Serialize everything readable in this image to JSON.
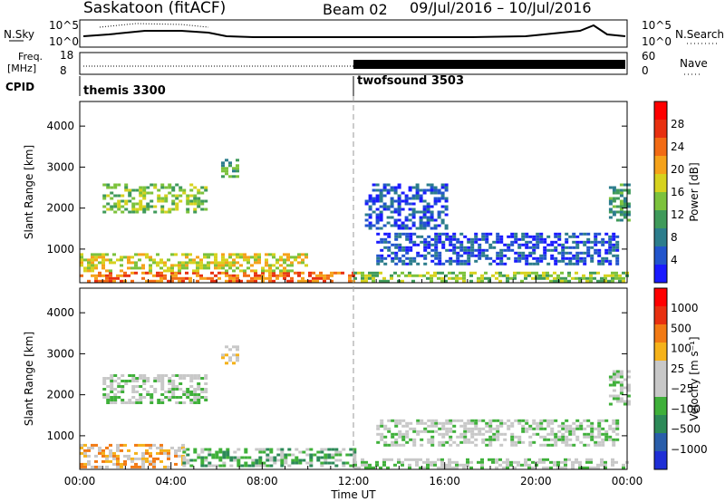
{
  "header": {
    "station": "Saskatoon (fitACF)",
    "beam": "Beam 02",
    "date_range": "09/Jul/2016 – 10/Jul/2016"
  },
  "status_panels": {
    "nsky": {
      "label": "N.Sky",
      "left_ticks": [
        "10^5",
        "10^0"
      ],
      "right_label": "N.Search",
      "right_ticks": [
        "10^5",
        "10^0"
      ]
    },
    "freq": {
      "label_line1": "Freq.",
      "label_line2": "[MHz]",
      "left_ticks": [
        "18",
        "8"
      ],
      "right_label": "Nave",
      "right_ticks": [
        "60",
        "0"
      ]
    },
    "cpid": {
      "label": "CPID",
      "segments": [
        {
          "name": "themis 3300",
          "start_hour": 0
        },
        {
          "name": "twofsound 3503",
          "start_hour": 12
        }
      ]
    }
  },
  "chart_data": [
    {
      "type": "heatmap",
      "title": "",
      "quantity": "Power",
      "ylabel": "Slant Range [km]",
      "xlabel": "",
      "y_ticks": [
        1000,
        2000,
        3000,
        4000
      ],
      "ylim": [
        180,
        4600
      ],
      "x_ticks_hours": [
        0,
        4,
        8,
        12,
        16,
        20,
        24
      ],
      "colorbar": {
        "label": "Power [dB]",
        "ticks": [
          "4",
          "8",
          "12",
          "16",
          "20",
          "24",
          "28"
        ],
        "colors": [
          "#1a1aff",
          "#2255cc",
          "#2c7d8c",
          "#3f9a5a",
          "#7cc23c",
          "#d6d21e",
          "#f5a21a",
          "#f26b14",
          "#e83010",
          "#ff0000"
        ]
      },
      "echo_regions": [
        {
          "x": [
            1.0,
            5.6
          ],
          "y": [
            1900,
            2600
          ],
          "level": 4
        },
        {
          "x": [
            6.2,
            6.9
          ],
          "y": [
            2800,
            3200
          ],
          "level": 3
        },
        {
          "x": [
            0.0,
            12.0
          ],
          "y": [
            200,
            450
          ],
          "level": 7
        },
        {
          "x": [
            0.0,
            10.0
          ],
          "y": [
            450,
            900
          ],
          "level": 5
        },
        {
          "x": [
            12.0,
            24.0
          ],
          "y": [
            200,
            450
          ],
          "level": 4
        },
        {
          "x": [
            13.0,
            23.5
          ],
          "y": [
            650,
            1400
          ],
          "level": 1
        },
        {
          "x": [
            12.5,
            16.0
          ],
          "y": [
            1500,
            2600
          ],
          "level": 1
        },
        {
          "x": [
            23.2,
            24.0
          ],
          "y": [
            1700,
            2600
          ],
          "level": 3
        }
      ]
    },
    {
      "type": "heatmap",
      "title": "",
      "quantity": "Velocity",
      "ylabel": "Slant Range [km]",
      "xlabel": "Time UT",
      "y_ticks": [
        1000,
        2000,
        3000,
        4000
      ],
      "ylim": [
        180,
        4600
      ],
      "x_ticks_hours": [
        0,
        4,
        8,
        12,
        16,
        20,
        24
      ],
      "x_tick_labels": [
        "00:00",
        "04:00",
        "08:00",
        "12:00",
        "16:00",
        "20:00",
        "00:00"
      ],
      "colorbar": {
        "label": "Velocity [m s⁻¹]",
        "ticks": [
          "1000",
          "500",
          "100",
          "25",
          "−25",
          "−100",
          "−500",
          "−1000"
        ],
        "colors": [
          "#1f2fd6",
          "#2a5eaa",
          "#2d8a58",
          "#3fb03a",
          "#c8c8c8",
          "#c8c8c8",
          "#f5b21a",
          "#f27a14",
          "#e83010",
          "#ff0000"
        ]
      },
      "echo_regions": [
        {
          "x": [
            1.0,
            5.6
          ],
          "y": [
            1800,
            2500
          ],
          "level": 4
        },
        {
          "x": [
            6.2,
            6.9
          ],
          "y": [
            2800,
            3200
          ],
          "level": 5
        },
        {
          "x": [
            0.0,
            4.5
          ],
          "y": [
            250,
            800
          ],
          "level": 6
        },
        {
          "x": [
            4.5,
            12.0
          ],
          "y": [
            250,
            700
          ],
          "level": 3
        },
        {
          "x": [
            12.0,
            24.0
          ],
          "y": [
            250,
            450
          ],
          "level": 4
        },
        {
          "x": [
            13.0,
            23.5
          ],
          "y": [
            800,
            1400
          ],
          "level": 4
        },
        {
          "x": [
            23.2,
            24.0
          ],
          "y": [
            1800,
            2600
          ],
          "level": 4
        }
      ]
    }
  ]
}
